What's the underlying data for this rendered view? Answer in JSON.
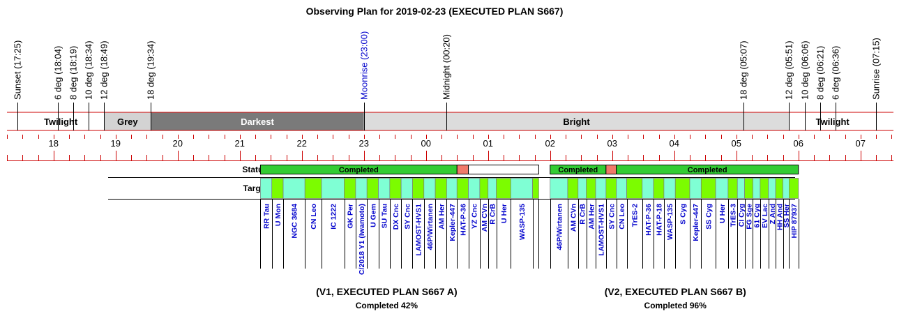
{
  "chart_data": {
    "type": "timeline",
    "title": "Observing Plan for 2019-02-23 (EXECUTED PLAN S667)",
    "time_axis": {
      "start": "17:15",
      "end": "07:35",
      "hour_labels": [
        "18",
        "19",
        "20",
        "21",
        "22",
        "23",
        "00",
        "01",
        "02",
        "03",
        "04",
        "05",
        "06",
        "07"
      ]
    },
    "events": [
      {
        "label": "Sunset (17:25)",
        "time": "17:25",
        "color": "#000000"
      },
      {
        "label": "6 deg (18:04)",
        "time": "18:04",
        "color": "#000000"
      },
      {
        "label": "8 deg (18:19)",
        "time": "18:19",
        "color": "#000000"
      },
      {
        "label": "10 deg (18:34)",
        "time": "18:34",
        "color": "#000000"
      },
      {
        "label": "12 deg (18:49)",
        "time": "18:49",
        "color": "#000000"
      },
      {
        "label": "18 deg (19:34)",
        "time": "19:34",
        "color": "#000000"
      },
      {
        "label": "Moonrise (23:00)",
        "time": "23:00",
        "color": "#0000cc"
      },
      {
        "label": "Midnight (00:20)",
        "time": "00:20",
        "color": "#000000"
      },
      {
        "label": "18 deg (05:07)",
        "time": "05:07",
        "color": "#000000"
      },
      {
        "label": "12 deg (05:51)",
        "time": "05:51",
        "color": "#000000"
      },
      {
        "label": "10 deg (06:06)",
        "time": "06:06",
        "color": "#000000"
      },
      {
        "label": "8 deg (06:21)",
        "time": "06:21",
        "color": "#000000"
      },
      {
        "label": "6 deg (06:36)",
        "time": "06:36",
        "color": "#000000"
      },
      {
        "label": "Sunrise (07:15)",
        "time": "07:15",
        "color": "#000000"
      }
    ],
    "sky_bands": [
      {
        "label": "Twilight",
        "start": "17:25",
        "end": "18:49",
        "color": "#ffffff",
        "text_color": "#000000"
      },
      {
        "label": "Grey",
        "start": "18:49",
        "end": "19:34",
        "color": "#d3d3d3",
        "text_color": "#000000"
      },
      {
        "label": "Darkest",
        "start": "19:34",
        "end": "23:00",
        "color": "#7a7a7a",
        "text_color": "#ffffff"
      },
      {
        "label": "Bright",
        "start": "23:00",
        "end": "05:51",
        "color": "#dcdcdc",
        "text_color": "#000000"
      },
      {
        "label": "Twilight",
        "start": "05:51",
        "end": "07:15",
        "color": "#ffffff",
        "text_color": "#000000"
      }
    ],
    "row_labels": {
      "status": "Status",
      "targets": "Targets"
    },
    "status_segments": [
      {
        "label": "Completed",
        "start": "21:20",
        "end": "00:30",
        "color": "#33cc33"
      },
      {
        "label": "",
        "start": "00:30",
        "end": "00:41",
        "color": "#f07a6a"
      },
      {
        "label": "",
        "start": "00:41",
        "end": "01:49",
        "color": "#ffffff"
      },
      {
        "label": "Completed",
        "start": "02:00",
        "end": "02:54",
        "color": "#33cc33"
      },
      {
        "label": "",
        "start": "02:54",
        "end": "03:04",
        "color": "#f07a6a"
      },
      {
        "label": "Completed",
        "start": "03:04",
        "end": "06:00",
        "color": "#33cc33"
      }
    ],
    "target_colors": {
      "a": "#7fffd4",
      "b": "#7cfc00"
    },
    "targets": [
      {
        "name": "RR Tau",
        "start": "21:20",
        "end": "21:31",
        "color": "a"
      },
      {
        "name": "U Mon",
        "start": "21:31",
        "end": "21:42",
        "color": "b"
      },
      {
        "name": "NGC 3684",
        "start": "21:42",
        "end": "22:03",
        "color": "a"
      },
      {
        "name": "CN Leo",
        "start": "22:03",
        "end": "22:19",
        "color": "b"
      },
      {
        "name": "IC 1222",
        "start": "22:19",
        "end": "22:41",
        "color": "a"
      },
      {
        "name": "GK Per",
        "start": "22:41",
        "end": "22:52",
        "color": "b"
      },
      {
        "name": "C/2018 Y1 (Iwamoto)",
        "start": "22:52",
        "end": "23:03",
        "color": "a"
      },
      {
        "name": "U Gem",
        "start": "23:03",
        "end": "23:14",
        "color": "b"
      },
      {
        "name": "SU Tau",
        "start": "23:14",
        "end": "23:25",
        "color": "a"
      },
      {
        "name": "DX Cnc",
        "start": "23:25",
        "end": "23:36",
        "color": "b"
      },
      {
        "name": "SY Cnc",
        "start": "23:36",
        "end": "23:47",
        "color": "a"
      },
      {
        "name": "LAMOST-HVS1",
        "start": "23:47",
        "end": "23:58",
        "color": "b"
      },
      {
        "name": "46P/Wirtanen",
        "start": "23:58",
        "end": "00:09",
        "color": "a"
      },
      {
        "name": "AM Her",
        "start": "00:09",
        "end": "00:20",
        "color": "b"
      },
      {
        "name": "Kepler-447",
        "start": "00:20",
        "end": "00:30",
        "color": "a"
      },
      {
        "name": "HAT-P-36",
        "start": "00:30",
        "end": "00:41",
        "color": "b"
      },
      {
        "name": "YZ Cnc",
        "start": "00:41",
        "end": "00:52",
        "color": "a"
      },
      {
        "name": "AM CVn",
        "start": "00:52",
        "end": "01:00",
        "color": "b"
      },
      {
        "name": "R CrB",
        "start": "01:00",
        "end": "01:08",
        "color": "a"
      },
      {
        "name": "U Her",
        "start": "01:08",
        "end": "01:22",
        "color": "b"
      },
      {
        "name": "WASP-135",
        "start": "01:22",
        "end": "01:43",
        "color": "a"
      },
      {
        "name": "",
        "start": "01:43",
        "end": "01:49",
        "color": "b"
      },
      {
        "name": "46P/Wirtanen",
        "start": "02:00",
        "end": "02:17",
        "color": "a"
      },
      {
        "name": "AM CVn",
        "start": "02:17",
        "end": "02:27",
        "color": "b"
      },
      {
        "name": "R CrB",
        "start": "02:27",
        "end": "02:35",
        "color": "a"
      },
      {
        "name": "AM Her",
        "start": "02:35",
        "end": "02:44",
        "color": "b"
      },
      {
        "name": "LAMOST-HVS1",
        "start": "02:44",
        "end": "02:54",
        "color": "a"
      },
      {
        "name": "SY Cnc",
        "start": "02:54",
        "end": "03:04",
        "color": "b"
      },
      {
        "name": "CN Leo",
        "start": "03:04",
        "end": "03:14",
        "color": "a"
      },
      {
        "name": "TrES-2",
        "start": "03:14",
        "end": "03:29",
        "color": "b"
      },
      {
        "name": "HAT-P-36",
        "start": "03:29",
        "end": "03:40",
        "color": "a"
      },
      {
        "name": "HAT-P-18",
        "start": "03:40",
        "end": "03:50",
        "color": "b"
      },
      {
        "name": "WASP-135",
        "start": "03:50",
        "end": "04:01",
        "color": "a"
      },
      {
        "name": "S Cyg",
        "start": "04:01",
        "end": "04:15",
        "color": "b"
      },
      {
        "name": "Kepler-447",
        "start": "04:15",
        "end": "04:26",
        "color": "a"
      },
      {
        "name": "SS Cyg",
        "start": "04:26",
        "end": "04:40",
        "color": "b"
      },
      {
        "name": "U Her",
        "start": "04:40",
        "end": "04:52",
        "color": "a"
      },
      {
        "name": "TrES-3",
        "start": "04:52",
        "end": "05:01",
        "color": "b"
      },
      {
        "name": "CI Cyg",
        "start": "05:01",
        "end": "05:08",
        "color": "a"
      },
      {
        "name": "FG Sge",
        "start": "05:08",
        "end": "05:16",
        "color": "b"
      },
      {
        "name": "61 Cyg",
        "start": "05:16",
        "end": "05:23",
        "color": "a"
      },
      {
        "name": "EV Lac",
        "start": "05:23",
        "end": "05:31",
        "color": "b"
      },
      {
        "name": "Z And",
        "start": "05:31",
        "end": "05:38",
        "color": "a"
      },
      {
        "name": "HH And",
        "start": "05:38",
        "end": "05:45",
        "color": "b"
      },
      {
        "name": "SS Her",
        "start": "05:45",
        "end": "05:51",
        "color": "a"
      },
      {
        "name": "HIP 87937",
        "start": "05:51",
        "end": "06:00",
        "color": "b"
      }
    ],
    "plans": [
      {
        "title": "(V1, EXECUTED PLAN S667 A)",
        "completion": "Completed 42%",
        "center_time": "23:22"
      },
      {
        "title": "(V2, EXECUTED PLAN S667 B)",
        "completion": "Completed 96%",
        "center_time": "04:01"
      }
    ]
  }
}
